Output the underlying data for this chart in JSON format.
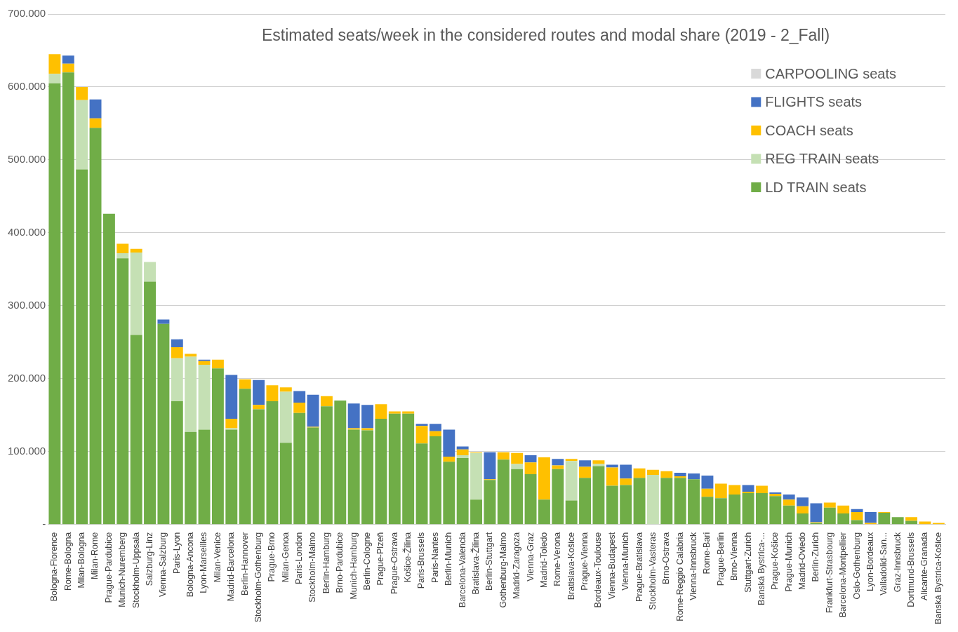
{
  "chart_data": {
    "type": "bar",
    "stacked": true,
    "title": "Estimated seats/week in the considered routes and modal share (2019 - 2_Fall)",
    "categories": [
      "Bologna-Florence",
      "Rome-Bologna",
      "Milan-Bologna",
      "Milan-Rome",
      "Prague-Pardubice",
      "Munich-Nuremberg",
      "Stockholm-Uppsala",
      "Salzburg-Linz",
      "Vienna-Salzburg",
      "Paris-Lyon",
      "Bologna-Ancona",
      "Lyon-Marseilles",
      "Milan-Venice",
      "Madrid-Barcelona",
      "Berlin-Hannover",
      "Stockholm-Gothenburg",
      "Prague-Brno",
      "Milan-Genoa",
      "Paris-London",
      "Stockholm-Malmo",
      "Berlin-Hamburg",
      "Brno-Pardubice",
      "Munich-Hamburg",
      "Berlin-Cologne",
      "Prague-Plzeň",
      "Prague-Ostrava",
      "Košice-Žilina",
      "Paris-Brussels",
      "Paris-Nantes",
      "Berlin-Munich",
      "Barcelona-Valencia",
      "Bratislava-Žilina",
      "Berlin-Stuttgart",
      "Gothenburg-Malmo",
      "Madrid-Zaragoza",
      "Vienna-Graz",
      "Madrid-Toledo",
      "Rome-Verona",
      "Bratislava-Košice",
      "Prague-Vienna",
      "Bordeaux-Toulouse",
      "Vienna-Budapest",
      "Vienna-Munich",
      "Prague-Bratislava",
      "Stockholm-Vasteras",
      "Brno-Ostrava",
      "Rome-Reggio Calabria",
      "Vienna-Innsbruck",
      "Rome-Bari",
      "Prague-Berlin",
      "Brno-Vienna",
      "Stuttgart-Zurich",
      "Banská Bystrica-...",
      "Prague-Košice",
      "Prague-Munich",
      "Madrid-Oviedo",
      "Berlin-Zurich",
      "Frankfurt-Strasbourg",
      "Barcelona-Montpellier",
      "Oslo-Gothenburg",
      "Lyon-Bordeaux",
      "Valladolid-San...",
      "Graz-Innsbruck",
      "Dortmund-Brussels",
      "Alicante-Granada",
      "Banská Bystrica-Košice"
    ],
    "series": [
      {
        "name": "LD TRAIN seats",
        "color": "#70ad47",
        "values": [
          605000,
          620000,
          487000,
          544000,
          426000,
          365000,
          260000,
          333000,
          275000,
          169000,
          127000,
          130000,
          214000,
          130000,
          186000,
          158000,
          169000,
          112000,
          153000,
          133000,
          162000,
          170000,
          130000,
          129000,
          145000,
          152000,
          152000,
          111000,
          121000,
          86000,
          91000,
          34000,
          61000,
          89000,
          76000,
          69000,
          34000,
          76000,
          33000,
          64000,
          80000,
          53000,
          54000,
          64000,
          0,
          64000,
          64000,
          62000,
          38000,
          36000,
          41000,
          43000,
          43000,
          39000,
          26000,
          15000,
          2000,
          23000,
          15000,
          6000,
          0,
          16000,
          10000,
          5000,
          0,
          0
        ]
      },
      {
        "name": "REG TRAIN seats",
        "color": "#c5e0b4",
        "values": [
          13000,
          0,
          95000,
          0,
          0,
          7000,
          113000,
          27000,
          0,
          59000,
          103000,
          89000,
          0,
          2000,
          0,
          0,
          0,
          70000,
          0,
          0,
          0,
          0,
          0,
          0,
          0,
          0,
          0,
          0,
          0,
          0,
          4000,
          64000,
          0,
          0,
          7000,
          0,
          0,
          0,
          54000,
          0,
          3000,
          0,
          0,
          0,
          68000,
          0,
          0,
          0,
          0,
          0,
          0,
          0,
          0,
          0,
          0,
          0,
          0,
          0,
          0,
          0,
          0,
          0,
          0,
          0,
          0,
          0
        ]
      },
      {
        "name": "COACH seats",
        "color": "#ffc000",
        "values": [
          27000,
          12000,
          18000,
          13000,
          0,
          13000,
          5000,
          0,
          0,
          15000,
          4000,
          5000,
          12000,
          13000,
          13000,
          6000,
          22000,
          6000,
          14000,
          1000,
          14000,
          0,
          2000,
          3000,
          20000,
          3000,
          3000,
          24000,
          7000,
          7000,
          8000,
          1000,
          1000,
          10000,
          15000,
          16000,
          58000,
          5000,
          3000,
          15000,
          5000,
          25000,
          9000,
          13000,
          7000,
          9000,
          2000,
          0,
          11000,
          20000,
          13000,
          2000,
          10000,
          3000,
          8000,
          10000,
          1000,
          7000,
          11000,
          11000,
          2000,
          1000,
          0,
          5000,
          4000,
          2000
        ]
      },
      {
        "name": "FLIGHTS seats",
        "color": "#4472c4",
        "values": [
          0,
          11000,
          0,
          26000,
          0,
          0,
          0,
          0,
          6000,
          11000,
          0,
          2000,
          0,
          60000,
          0,
          34000,
          0,
          0,
          16000,
          44000,
          0,
          0,
          34000,
          32000,
          0,
          0,
          0,
          3000,
          10000,
          37000,
          4000,
          0,
          37000,
          0,
          0,
          10000,
          0,
          9000,
          0,
          9000,
          0,
          4000,
          19000,
          0,
          0,
          0,
          5000,
          8000,
          18000,
          0,
          0,
          9000,
          0,
          2000,
          7000,
          12000,
          26000,
          0,
          0,
          4000,
          15000,
          0,
          0,
          0,
          0,
          0
        ]
      },
      {
        "name": "CARPOOLING seats",
        "color": "#d9d9d9",
        "values": [
          0,
          0,
          0,
          0,
          0,
          0,
          0,
          0,
          0,
          0,
          0,
          0,
          0,
          0,
          0,
          0,
          0,
          0,
          0,
          0,
          0,
          0,
          0,
          0,
          0,
          0,
          0,
          0,
          0,
          0,
          0,
          0,
          0,
          0,
          0,
          0,
          0,
          0,
          0,
          0,
          0,
          0,
          0,
          0,
          0,
          0,
          0,
          0,
          0,
          0,
          0,
          0,
          0,
          0,
          0,
          0,
          0,
          0,
          0,
          0,
          0,
          0,
          0,
          0,
          0,
          0
        ]
      }
    ],
    "ylim": [
      0,
      700000
    ],
    "yticks": [
      {
        "value": 0,
        "label": "-"
      },
      {
        "value": 100000,
        "label": "100.000"
      },
      {
        "value": 200000,
        "label": "200.000"
      },
      {
        "value": 300000,
        "label": "300.000"
      },
      {
        "value": 400000,
        "label": "400.000"
      },
      {
        "value": 500000,
        "label": "500.000"
      },
      {
        "value": 600000,
        "label": "600.000"
      },
      {
        "value": 700000,
        "label": "700.000"
      }
    ],
    "grid": "y",
    "legend": "top right"
  }
}
